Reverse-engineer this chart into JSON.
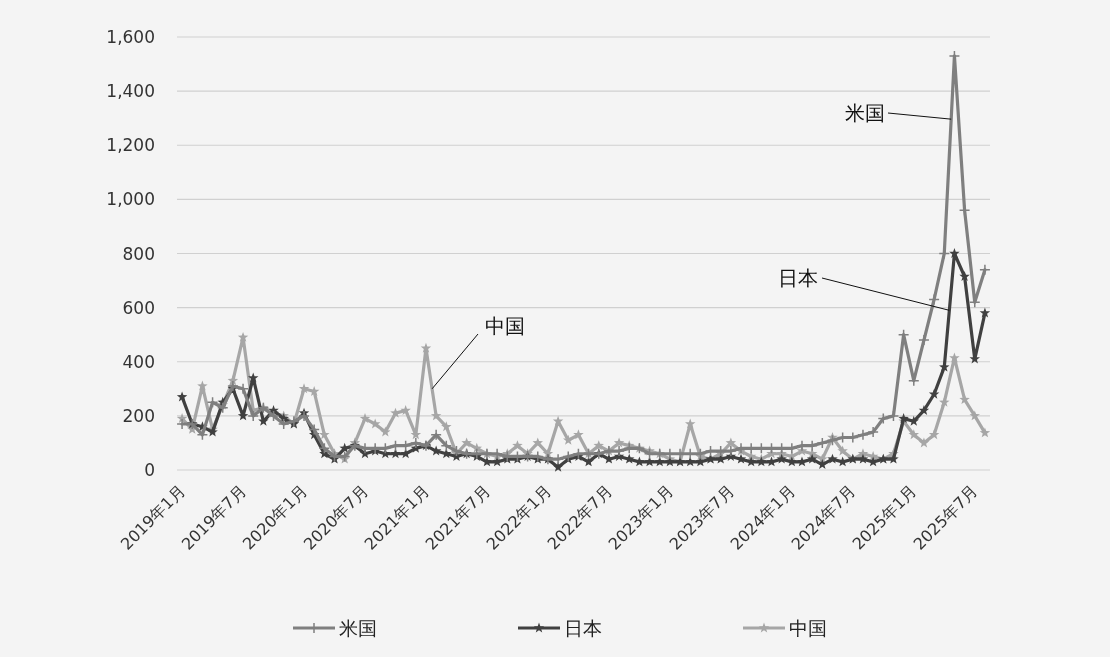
{
  "chart_data": {
    "type": "line",
    "categories": [
      "2019年1月",
      null,
      null,
      null,
      null,
      null,
      "2019年7月",
      null,
      null,
      null,
      null,
      null,
      "2020年1月",
      null,
      null,
      null,
      null,
      null,
      "2020年7月",
      null,
      null,
      null,
      null,
      null,
      "2021年1月",
      null,
      null,
      null,
      null,
      null,
      "2021年7月",
      null,
      null,
      null,
      null,
      null,
      "2022年1月",
      null,
      null,
      null,
      null,
      null,
      "2022年7月",
      null,
      null,
      null,
      null,
      null,
      "2023年1月",
      null,
      null,
      null,
      null,
      null,
      "2023年7月",
      null,
      null,
      null,
      null,
      null,
      "2024年1月",
      null,
      null,
      null,
      null,
      null,
      "2024年7月",
      null,
      null,
      null,
      null,
      null,
      "2025年1月",
      null,
      null,
      null,
      null,
      null,
      "2025年7月",
      null
    ],
    "ylim": [
      0,
      1600
    ],
    "yticks": [
      {
        "value": 0,
        "label": "0"
      },
      {
        "value": 200,
        "label": "200"
      },
      {
        "value": 400,
        "label": "400"
      },
      {
        "value": 600,
        "label": "600"
      },
      {
        "value": 800,
        "label": "800"
      },
      {
        "value": 1000,
        "label": "1,000"
      },
      {
        "value": 1200,
        "label": "1,200"
      },
      {
        "value": 1400,
        "label": "1,400"
      },
      {
        "value": 1600,
        "label": "1,600"
      }
    ],
    "grid": "y",
    "legend": "bottom",
    "line_style": "solid",
    "series": [
      {
        "name": "米国",
        "color": "#7f7f7f",
        "marker": "cross",
        "values": [
          170,
          170,
          130,
          250,
          230,
          310,
          300,
          200,
          230,
          200,
          170,
          180,
          200,
          150,
          80,
          50,
          50,
          90,
          80,
          80,
          80,
          90,
          90,
          100,
          90,
          130,
          90,
          70,
          60,
          60,
          60,
          60,
          50,
          50,
          50,
          50,
          40,
          40,
          50,
          60,
          60,
          60,
          70,
          70,
          80,
          80,
          60,
          60,
          60,
          60,
          60,
          60,
          70,
          70,
          70,
          80,
          80,
          80,
          80,
          80,
          80,
          90,
          90,
          100,
          110,
          120,
          120,
          130,
          140,
          190,
          200,
          500,
          330,
          480,
          630,
          800,
          1530,
          960,
          620,
          740
        ]
      },
      {
        "name": "日本",
        "color": "#404040",
        "marker": "star",
        "values": [
          270,
          170,
          160,
          140,
          250,
          300,
          200,
          340,
          180,
          220,
          190,
          170,
          210,
          130,
          60,
          40,
          80,
          90,
          60,
          70,
          60,
          60,
          60,
          80,
          90,
          70,
          60,
          50,
          60,
          50,
          30,
          30,
          40,
          40,
          50,
          40,
          40,
          10,
          40,
          50,
          30,
          60,
          40,
          50,
          40,
          30,
          30,
          30,
          30,
          30,
          30,
          30,
          40,
          40,
          50,
          40,
          30,
          30,
          30,
          40,
          30,
          30,
          40,
          20,
          40,
          30,
          40,
          40,
          30,
          40,
          40,
          190,
          180,
          220,
          280,
          380,
          800,
          715,
          410,
          580
        ]
      },
      {
        "name": "中国",
        "color": "#a6a6a6",
        "marker": "star",
        "values": [
          190,
          150,
          310,
          150,
          240,
          330,
          490,
          220,
          230,
          210,
          200,
          170,
          300,
          290,
          130,
          60,
          40,
          100,
          190,
          170,
          140,
          210,
          220,
          130,
          450,
          200,
          160,
          60,
          100,
          80,
          60,
          50,
          60,
          90,
          60,
          100,
          60,
          180,
          110,
          130,
          60,
          90,
          70,
          100,
          90,
          80,
          70,
          60,
          40,
          30,
          170,
          50,
          40,
          60,
          100,
          70,
          50,
          40,
          60,
          60,
          50,
          70,
          60,
          40,
          120,
          70,
          40,
          60,
          50,
          40,
          60,
          180,
          130,
          100,
          130,
          250,
          414,
          260,
          200,
          137
        ]
      }
    ]
  }
}
